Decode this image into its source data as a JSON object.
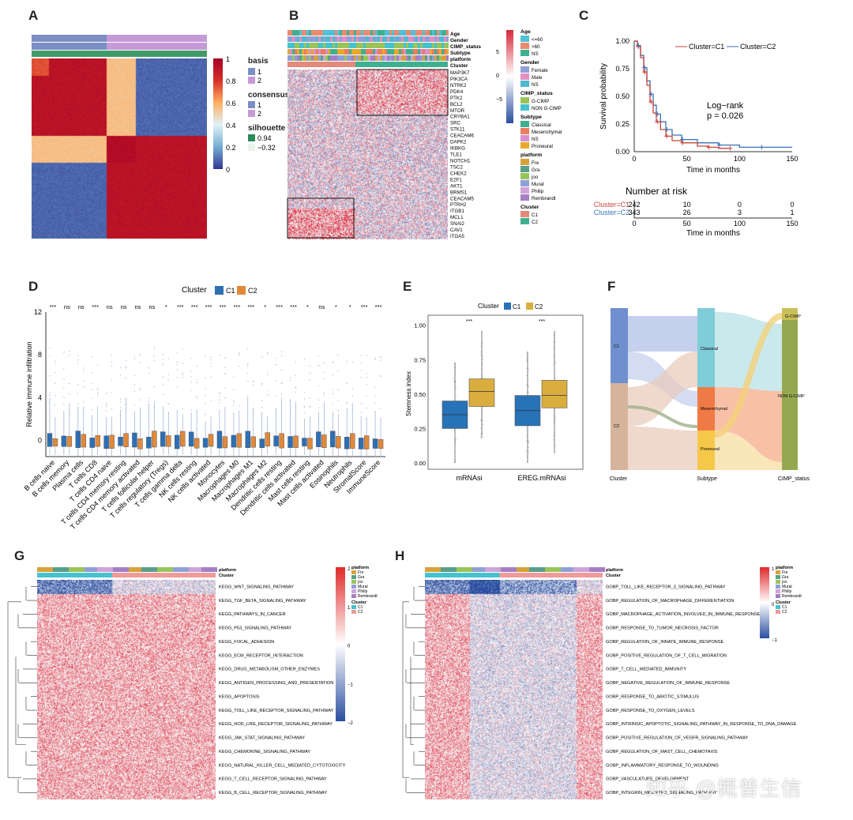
{
  "panel_labels": {
    "A": "A",
    "B": "B",
    "C": "C",
    "D": "D",
    "E": "E",
    "F": "F",
    "G": "G",
    "H": "H"
  },
  "panelA": {
    "colorbar_ticks": [
      "1",
      "0.8",
      "0.6",
      "0.4",
      "0.2",
      "0"
    ],
    "legend": {
      "basis_title": "basis",
      "basis_items": [
        "1",
        "2"
      ],
      "consensus_title": "consensus",
      "consensus_items": [
        "1",
        "2"
      ],
      "silhouette_title": "silhouette",
      "silhouette_items": [
        "0.94",
        "−0.32"
      ]
    },
    "colors": {
      "c1": "#7b8fc4",
      "c2": "#c59ad6",
      "sil": "#3f9b6a"
    }
  },
  "panelB": {
    "track_labels": [
      "Age",
      "Gender",
      "CIMP_status",
      "Subtype",
      "platform",
      "Cluster"
    ],
    "genes": [
      "MAP3K7",
      "PIK3CA",
      "NTRK2",
      "PDK4",
      "PTK2",
      "BCL2",
      "MTOR",
      "CRYBA1",
      "SRC",
      "STK11",
      "CEACAM6",
      "DAPK2",
      "IKBKG",
      "TLE1",
      "NOTCH1",
      "TSC2",
      "CHEK2",
      "E2F1",
      "AKT1",
      "BRMS1",
      "CEACAM5",
      "PTRH2",
      "ITGB1",
      "MCL1",
      "SNAI2",
      "CAV1",
      "ITGA5"
    ],
    "scale_ticks": [
      "5",
      "0",
      "−5"
    ],
    "legend": [
      {
        "title": "Age",
        "items": [
          {
            "label": "<=60",
            "color": "#4fc1d8"
          },
          {
            "label": ">60",
            "color": "#e98a70"
          },
          {
            "label": "NS",
            "color": "#3fb08f"
          }
        ]
      },
      {
        "title": "Gender",
        "items": [
          {
            "label": "Female",
            "color": "#8fa0d6"
          },
          {
            "label": "Male",
            "color": "#e38fc2"
          },
          {
            "label": "NS",
            "color": "#4fb8cf"
          }
        ]
      },
      {
        "title": "CIMP_status",
        "items": [
          {
            "label": "G-CIMP",
            "color": "#9ac45a"
          },
          {
            "label": "NON G-CIMP",
            "color": "#46c2cf"
          }
        ]
      },
      {
        "title": "Subtype",
        "items": [
          {
            "label": "Classical",
            "color": "#3fb08f"
          },
          {
            "label": "Mesenchymal",
            "color": "#ec7b5f"
          },
          {
            "label": "NS",
            "color": "#d78fd0"
          },
          {
            "label": "Proneural",
            "color": "#e8a82c"
          }
        ]
      },
      {
        "title": "platform",
        "items": [
          {
            "label": "Fre",
            "color": "#d8a23a"
          },
          {
            "label": "Gra",
            "color": "#5a9e8c"
          },
          {
            "label": "joo",
            "color": "#9ac45a"
          },
          {
            "label": "Murat",
            "color": "#8fa0d6"
          },
          {
            "label": "Philip",
            "color": "#cfa3d8"
          },
          {
            "label": "Rembrandt",
            "color": "#a57fc4"
          }
        ]
      },
      {
        "title": "Cluster",
        "items": [
          {
            "label": "C1",
            "color": "#e38a7a"
          },
          {
            "label": "C2",
            "color": "#3fb08f"
          }
        ]
      }
    ]
  },
  "panelC": {
    "ylabel": "Survival probability",
    "xlabel": "Time in months",
    "yticks": [
      "1.00",
      "0.75",
      "0.50",
      "0.25",
      "0.00"
    ],
    "xticks": [
      "0",
      "50",
      "100",
      "150"
    ],
    "legend": [
      "Cluster=C1",
      "Cluster=C2"
    ],
    "annotation_line1": "Log−rank",
    "annotation_line2": "p = 0.026",
    "risk_title": "Number at risk",
    "risk_rows": [
      {
        "label": "Cluster=C1",
        "values": [
          "242",
          "10",
          "0",
          "0"
        ],
        "color": "#c8443a"
      },
      {
        "label": "Cluster=C2",
        "values": [
          "343",
          "26",
          "3",
          "1"
        ],
        "color": "#3a72b5"
      }
    ],
    "colors": {
      "c1": "#c8443a",
      "c2": "#3a72b5"
    }
  },
  "panelD": {
    "legend_title": "Cluster",
    "legend_items": [
      "C1",
      "C2"
    ],
    "ylabel": "Relative immune infiltration",
    "yticks": [
      "12",
      "8",
      "4",
      "0"
    ],
    "cells": [
      "B cells naive",
      "B cells memory",
      "Plasma cells",
      "T cells CD8",
      "T cells CD4 naive",
      "T cells CD4 memory resting",
      "T cells CD4 memory activated",
      "T cells follicular helper",
      "T cells regulatory (Tregs)",
      "T cells gamma delta",
      "NK cells resting",
      "NK cells activated",
      "Monocytes",
      "Macrophages M0",
      "Macrophages M1",
      "Macrophages M2",
      "Dendritic cells resting",
      "Dendritic cells activated",
      "Mast cells resting",
      "Mast cells activated",
      "Eosinophils",
      "Neutrophils",
      "StromalScore",
      "ImmuneScore"
    ],
    "sig": [
      "***",
      "ns",
      "ns",
      "***",
      "ns",
      "ns",
      "ns",
      "ns",
      "*",
      "***",
      "***",
      "***",
      "***",
      "***",
      "***",
      "*",
      "***",
      "***",
      "*",
      "ns",
      "*",
      "*",
      "***",
      "***"
    ],
    "colors": {
      "c1": "#2f6fb3",
      "c2": "#e0893a"
    }
  },
  "panelE": {
    "legend_title": "Cluster",
    "legend_items": [
      "C1",
      "C2"
    ],
    "ylabel": "Stemness index",
    "yticks": [
      "1.00",
      "0.75",
      "0.50",
      "0.25",
      "0.00"
    ],
    "categories": [
      "mRNAsi",
      "EREG.mRNAsi"
    ],
    "sig": [
      "***",
      "***"
    ],
    "colors": {
      "c1": "#2872b8",
      "c2": "#d9ae3e"
    }
  },
  "panelF": {
    "axis_labels": [
      "Cluster",
      "Subtype",
      "CIMP_status"
    ],
    "node_labels": [
      "C1",
      "C2",
      "Classical",
      "Mesenchymal",
      "Proneural",
      "G-CIMP",
      "NON G-CIMP"
    ]
  },
  "panelG": {
    "track_labels": [
      "platform",
      "Cluster"
    ],
    "pathways": [
      "KEGG_WNT_SIGNALING_PATHWAY",
      "KEGG_TGF_BETA_SIGNALING_PATHWAY",
      "KEGG_PATHWAYS_IN_CANCER",
      "KEGG_P53_SIGNALING_PATHWAY",
      "KEGG_FOCAL_ADHESION",
      "KEGG_ECM_RECEPTOR_INTERACTION",
      "KEGG_DRUG_METABOLISM_OTHER_ENZYMES",
      "KEGG_ANTIGEN_PROCESSING_AND_PRESENTATION",
      "KEGG_APOPTOSIS",
      "KEGG_TOLL_LIKE_RECEPTOR_SIGNALING_PATHWAY",
      "KEGG_NOD_LIKE_RECEPTOR_SIGNALING_PATHWAY",
      "KEGG_JAK_STAT_SIGNALING_PATHWAY",
      "KEGG_CHEMOKINE_SIGNALING_PATHWAY",
      "KEGG_NATURAL_KILLER_CELL_MEDIATED_CYTOTOXICITY",
      "KEGG_T_CELL_RECEPTOR_SIGNALING_PATHWAY",
      "KEGG_B_CELL_RECEPTOR_SIGNALING_PATHWAY"
    ],
    "scale_ticks": [
      "2",
      "1",
      "0",
      "−1",
      "−2"
    ],
    "legend_platform_title": "platform",
    "legend_platform": [
      "Fre",
      "Gra",
      "joo",
      "Murat",
      "Philip",
      "Rembrandt"
    ],
    "legend_cluster_title": "Cluster",
    "legend_cluster": [
      "C1",
      "C2"
    ]
  },
  "panelH": {
    "track_labels": [
      "platform",
      "Cluster"
    ],
    "pathways": [
      "GOBP_TOLL_LIKE_RECEPTOR_3_SIGNALING_PATHWAY",
      "GOBP_REGULATION_OF_MACROPHAGE_DIFFERENTIATION",
      "GOBP_MACROPHAGE_ACTIVATION_INVOLVED_IN_IMMUNE_RESPONSE",
      "GOBP_RESPONSE_TO_TUMOR_NECROSIS_FACTOR",
      "GOBP_REGULATION_OF_INNATE_IMMUNE_RESPONSE",
      "GOBP_POSITIVE_REGULATION_OF_T_CELL_MIGRATION",
      "GOBP_T_CELL_MEDIATED_IMMUNITY",
      "GOBP_NEGATIVE_REGULATION_OF_IMMUNE_RESPONSE",
      "GOBP_RESPONSE_TO_ABIOTIC_STIMULUS",
      "GOBP_RESPONSE_TO_OXYGEN_LEVELS",
      "GOBP_INTRINSIC_APOPTOTIC_SIGNALING_PATHWAY_IN_RESPONSE_TO_DNA_DAMAGE",
      "GOBP_POSITIVE_REGULATION_OF_VEGFR_SIGNALING_PATHWAY",
      "GOBP_REGULATION_OF_MAST_CELL_CHEMOTAXIS",
      "GOBP_INFLAMMATORY_RESPONSE_TO_WOUNDING",
      "GOBP_VASCULATURE_DEVELOPMENT",
      "GOBP_INTEGRIN_MEDIATED_SIGNALING_PATHWAY"
    ],
    "scale_ticks": [
      "1",
      "0",
      "−1"
    ],
    "legend_platform_title": "platform",
    "legend_platform": [
      "Fre",
      "Gra",
      "joo",
      "Murat",
      "Philip",
      "Rembrandt"
    ],
    "legend_cluster_title": "Cluster",
    "legend_cluster": [
      "C1",
      "C2"
    ]
  },
  "watermark": "知乎 @概普生信",
  "platform_colors": [
    "#d8a23a",
    "#5a9e8c",
    "#9ac45a",
    "#8fa0d6",
    "#cfa3d8",
    "#a57fc4"
  ],
  "cluster_colors": [
    "#46c2cf",
    "#f09a9a"
  ]
}
